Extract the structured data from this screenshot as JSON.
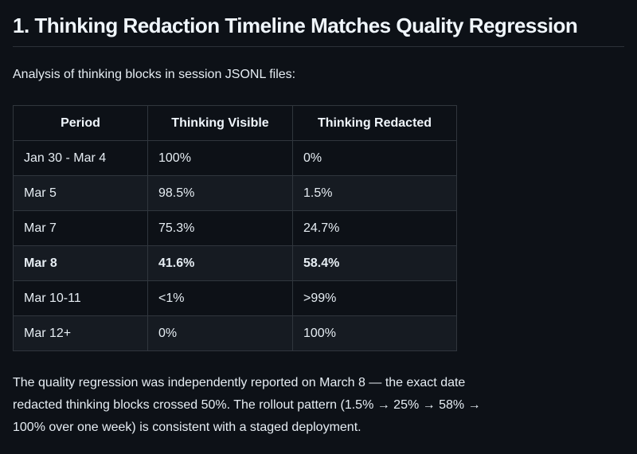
{
  "page": {
    "heading": "1. Thinking Redaction Timeline Matches Quality Regression",
    "intro": "Analysis of thinking blocks in session JSONL files:",
    "footer_lines": [
      "The quality regression was independently reported on March 8 — the exact date",
      "redacted thinking blocks crossed 50%. The rollout pattern (1.5% → 25% → 58% →",
      "100% over one week) is consistent with a staged deployment."
    ]
  },
  "table": {
    "headers": [
      "Period",
      "Thinking Visible",
      "Thinking Redacted"
    ],
    "rows": [
      {
        "period": "Jan 30 - Mar 4",
        "visible": "100%",
        "redacted": "0%"
      },
      {
        "period": "Mar 5",
        "visible": "98.5%",
        "redacted": "1.5%"
      },
      {
        "period": "Mar 7",
        "visible": "75.3%",
        "redacted": "24.7%"
      },
      {
        "period": "Mar 8",
        "visible": "41.6%",
        "redacted": "58.4%"
      },
      {
        "period": "Mar 10-11",
        "visible": "<1%",
        "redacted": ">99%"
      },
      {
        "period": "Mar 12+",
        "visible": "0%",
        "redacted": "100%"
      }
    ]
  },
  "colors": {
    "background": "#0d1117",
    "row_alt": "#161b22",
    "border": "#30363d",
    "text": "#e6edf3"
  }
}
